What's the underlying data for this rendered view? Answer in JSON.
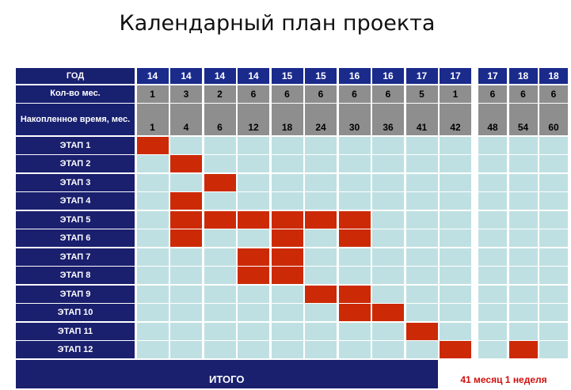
{
  "title": "Календарный план проекта",
  "labels": {
    "year": "ГОД",
    "months": "Кол-во мес.",
    "accumulated": "Накопленное время, мес.",
    "total": "ИТОГО",
    "total_value": "41 месяц  1 неделя"
  },
  "colors": {
    "active": "#cc2a07",
    "empty": "#bfe0e2",
    "header": "#1a2b8c",
    "label": "#1a1f6e",
    "number_row": "#8e8e8e"
  },
  "chart_data": {
    "type": "table",
    "title": "Календарный план проекта",
    "years": [
      "14",
      "14",
      "14",
      "14",
      "15",
      "15",
      "16",
      "16",
      "17",
      "17",
      "17",
      "18",
      "18"
    ],
    "months_count": [
      "1",
      "3",
      "2",
      "6",
      "6",
      "6",
      "6",
      "6",
      "5",
      "1",
      "6",
      "6",
      "6"
    ],
    "accumulated_months": [
      "1",
      "4",
      "6",
      "12",
      "18",
      "24",
      "30",
      "36",
      "41",
      "42",
      "48",
      "54",
      "60"
    ],
    "stages": [
      {
        "name": "ЭТАП 1",
        "active": [
          0
        ]
      },
      {
        "name": "ЭТАП 2",
        "active": [
          1
        ]
      },
      {
        "name": "ЭТАП 3",
        "active": [
          2
        ]
      },
      {
        "name": "ЭТАП 4",
        "active": [
          1
        ]
      },
      {
        "name": "ЭТАП 5",
        "active": [
          1,
          2,
          3,
          4,
          5,
          6
        ]
      },
      {
        "name": "ЭТАП 6",
        "active": [
          1,
          4,
          6
        ]
      },
      {
        "name": "ЭТАП 7",
        "active": [
          3,
          4
        ]
      },
      {
        "name": "ЭТАП 8",
        "active": [
          3,
          4
        ]
      },
      {
        "name": "ЭТАП 9",
        "active": [
          5,
          6
        ]
      },
      {
        "name": "ЭТАП 10",
        "active": [
          6,
          7
        ]
      },
      {
        "name": "ЭТАП 11",
        "active": [
          8
        ]
      },
      {
        "name": "ЭТАП 12",
        "active": [
          9,
          11
        ]
      }
    ],
    "total_label": "ИТОГО",
    "total_value": "41 месяц  1 неделя"
  }
}
